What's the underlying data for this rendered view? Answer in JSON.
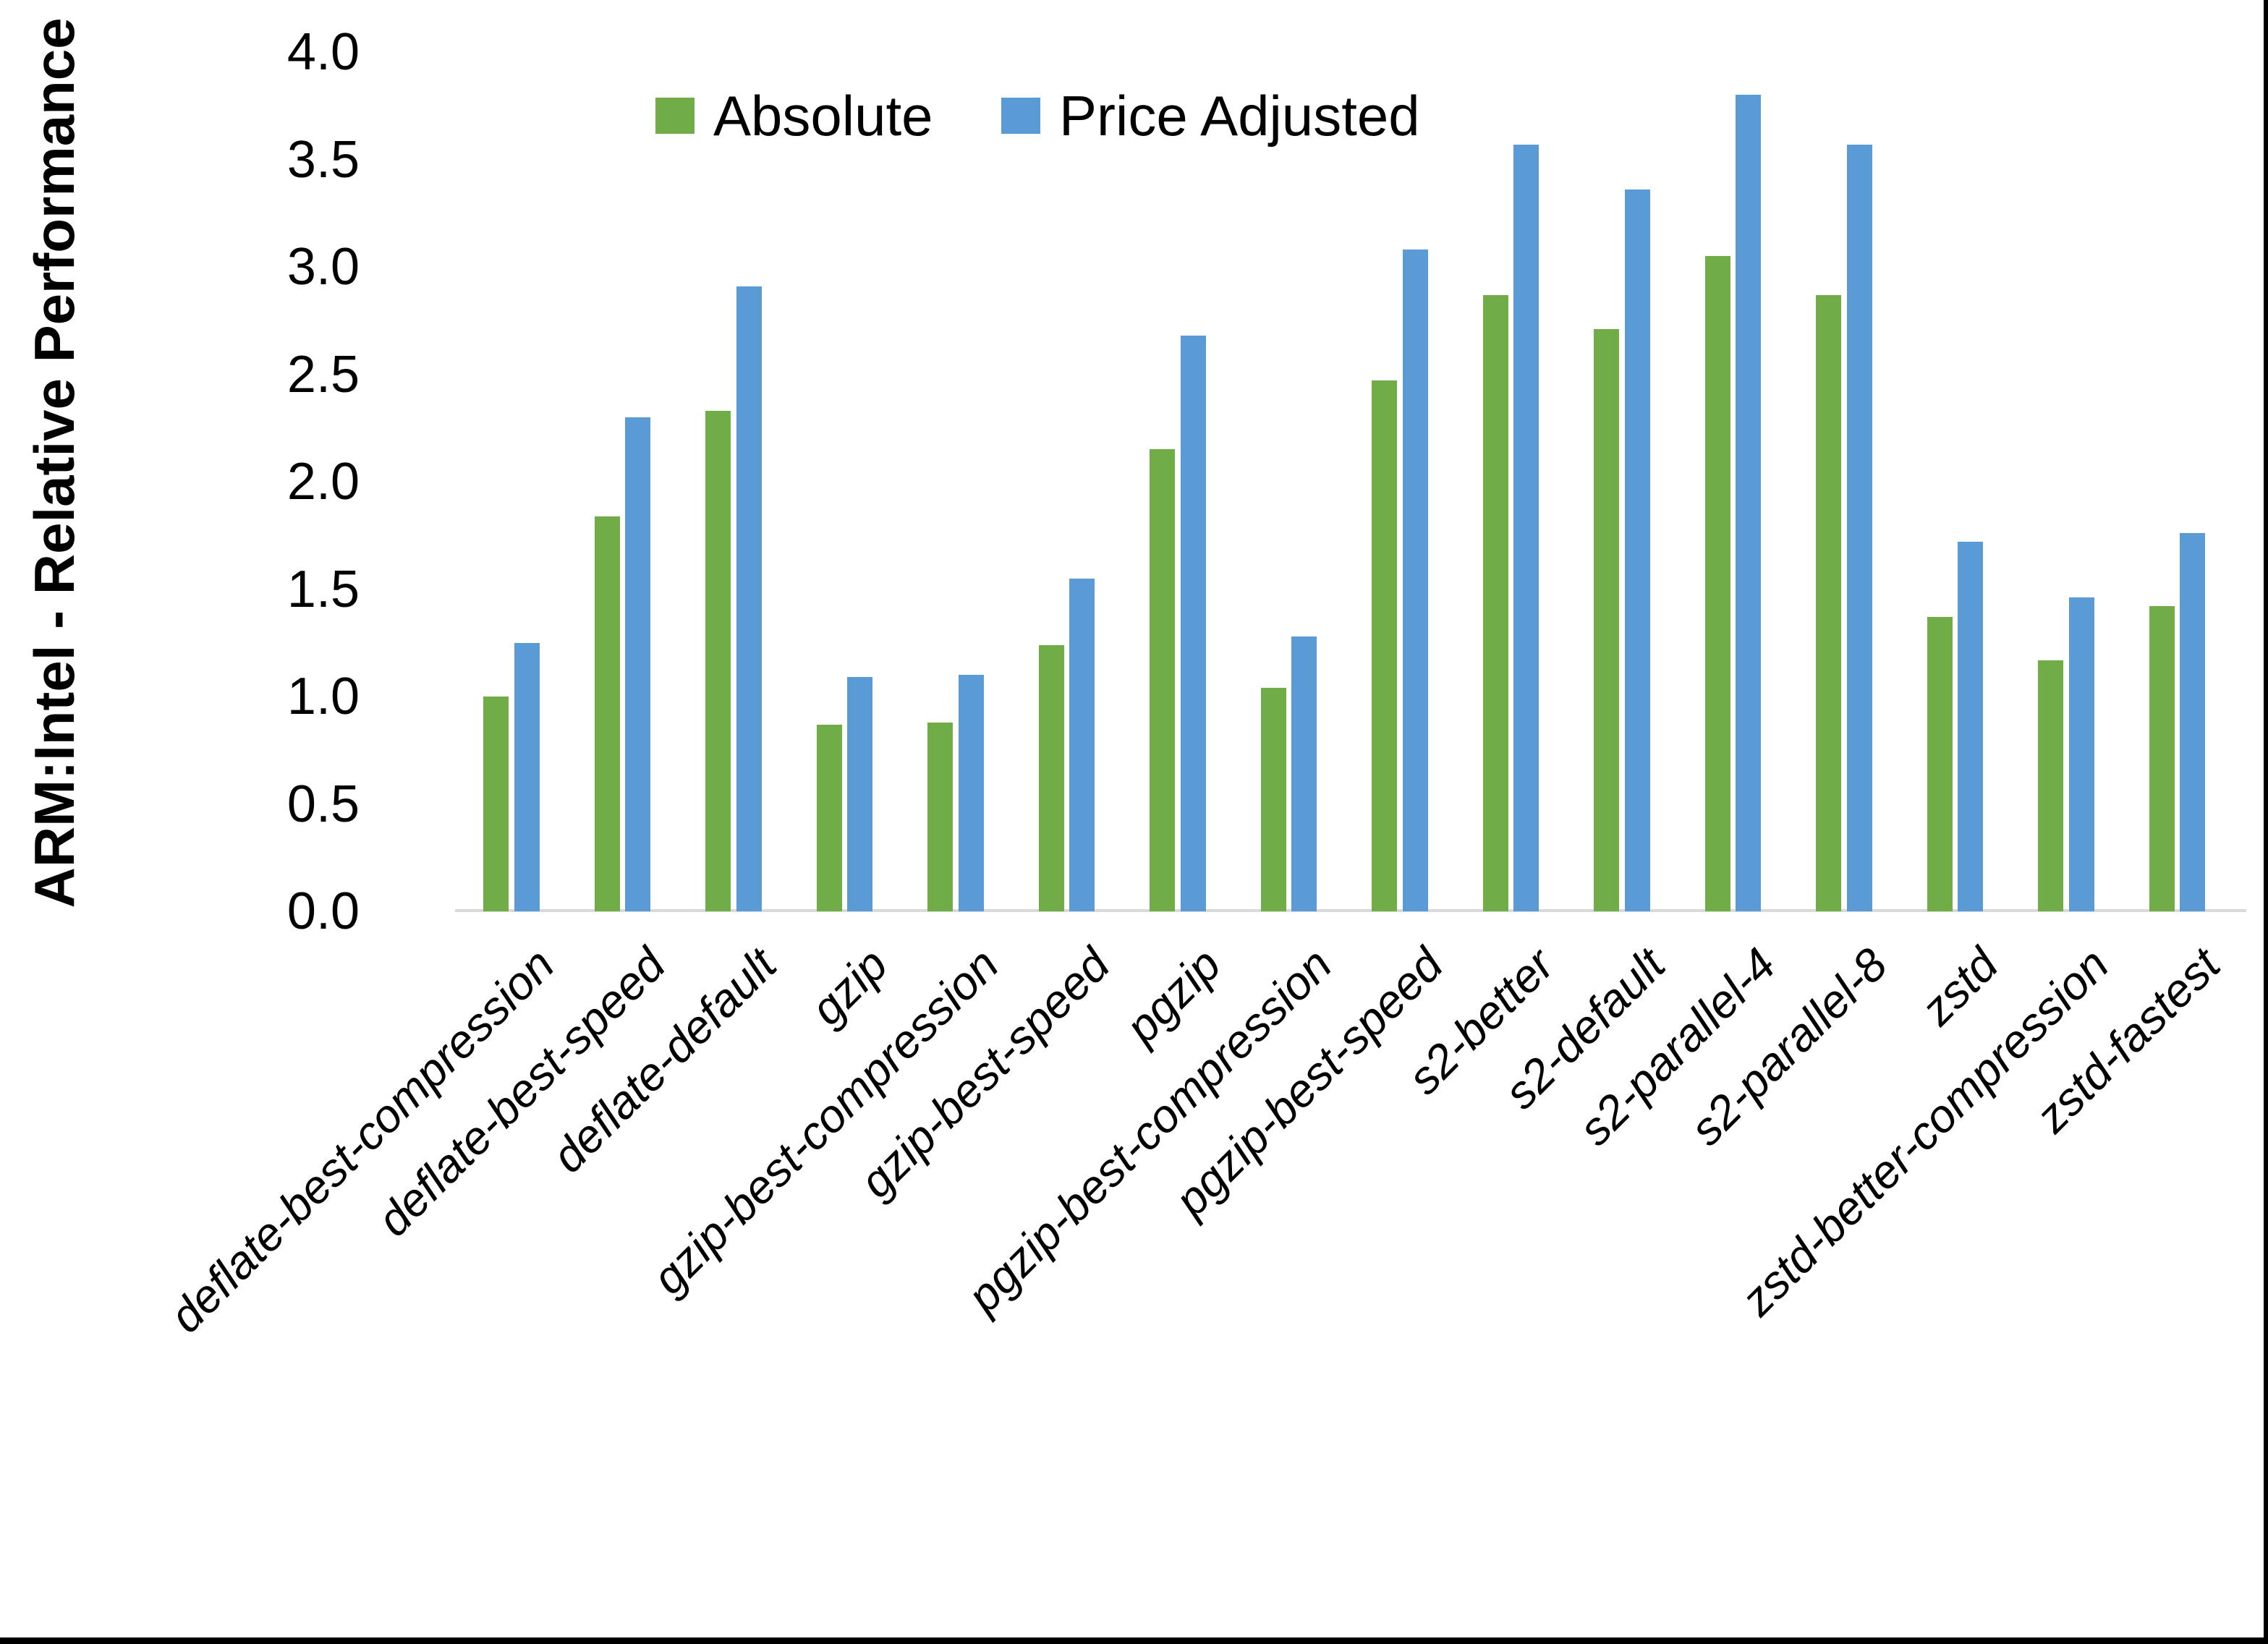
{
  "y_axis": {
    "title": "ARM:Intel - Relative Performance",
    "tick_labels": [
      "0.0",
      "0.5",
      "1.0",
      "1.5",
      "2.0",
      "2.5",
      "3.0",
      "3.5",
      "4.0"
    ]
  },
  "legend": {
    "items": [
      {
        "label": "Absolute",
        "color": "#70AD47"
      },
      {
        "label": "Price Adjusted",
        "color": "#5B9BD5"
      }
    ]
  },
  "colors": {
    "absolute_green": "#70AD47",
    "price_adjusted_blue": "#5B9BD5",
    "axis_line_gray": "#D9D9D9",
    "frame_black": "#000000"
  },
  "chart_data": {
    "type": "bar",
    "title": "",
    "xlabel": "",
    "ylabel": "ARM:Intel - Relative Performance",
    "ylim": [
      0,
      4
    ],
    "ytick_step": 0.5,
    "grid": false,
    "legend_position": "top-center",
    "categories": [
      "deflate-best-compression",
      "deflate-best-speed",
      "deflate-default",
      "gzip",
      "gzip-best-compression",
      "gzip-best-speed",
      "pgzip",
      "pgzip-best-compression",
      "pgzip-best-speed",
      "s2-better",
      "s2-default",
      "s2-parallel-4",
      "s2-parallel-8",
      "zstd",
      "zstd-better-compression",
      "zstd-fastest"
    ],
    "series": [
      {
        "name": "Absolute",
        "color": "#70AD47",
        "values": [
          1.0,
          1.84,
          2.33,
          0.87,
          0.88,
          1.24,
          2.15,
          1.04,
          2.47,
          2.87,
          2.71,
          3.05,
          2.87,
          1.37,
          1.17,
          1.42
        ]
      },
      {
        "name": "Price Adjusted",
        "color": "#5B9BD5",
        "values": [
          1.25,
          2.3,
          2.91,
          1.09,
          1.1,
          1.55,
          2.68,
          1.28,
          3.08,
          3.57,
          3.36,
          3.8,
          3.57,
          1.72,
          1.46,
          1.76
        ]
      }
    ]
  }
}
